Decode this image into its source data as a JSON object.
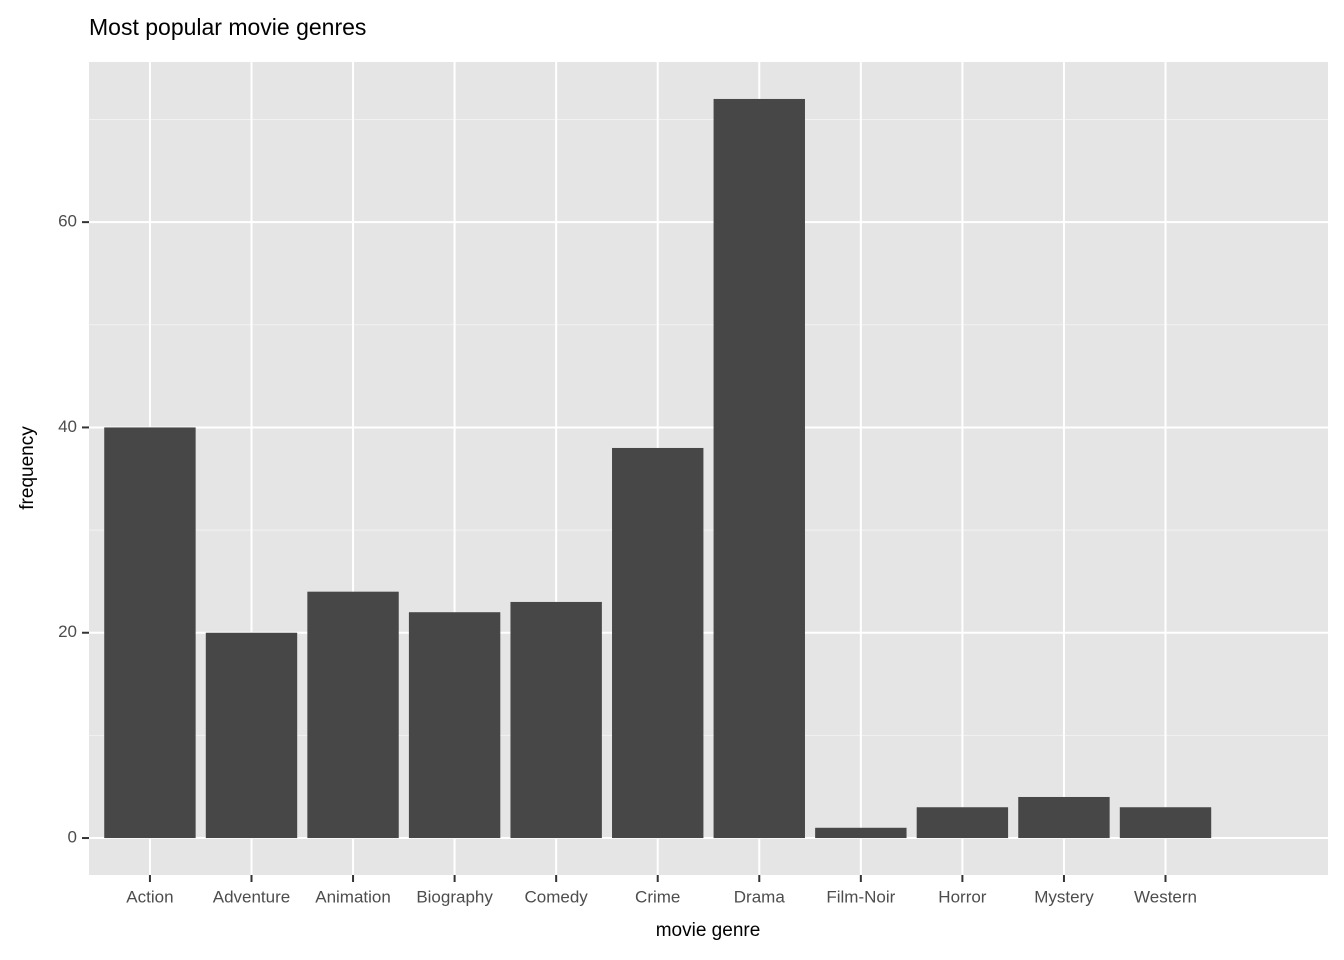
{
  "chart_data": {
    "type": "bar",
    "title": "Most popular movie genres",
    "x_label": "movie genre",
    "y_label": "frequency",
    "categories": [
      "Action",
      "Adventure",
      "Animation",
      "Biography",
      "Comedy",
      "Crime",
      "Drama",
      "Film-Noir",
      "Horror",
      "Mystery",
      "Western"
    ],
    "values": [
      40,
      20,
      24,
      22,
      23,
      38,
      72,
      1,
      3,
      4,
      3
    ],
    "color": "#474747",
    "ylim": [
      -3.6,
      75.6
    ],
    "yticks": [
      0,
      20,
      40,
      60
    ],
    "grid": true
  }
}
